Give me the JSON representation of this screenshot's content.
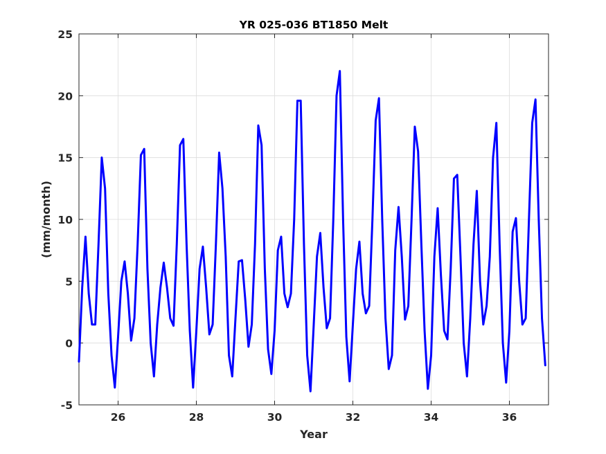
{
  "chart_data": {
    "type": "line",
    "title": "YR 025-036 BT1850 Melt",
    "xlabel": "Year",
    "ylabel": "(mm/month)",
    "xlim": [
      25,
      37
    ],
    "ylim": [
      -5,
      25
    ],
    "xticks": [
      26,
      28,
      30,
      32,
      34,
      36
    ],
    "xtick_labels": [
      "26",
      "28",
      "30",
      "32",
      "34",
      "36"
    ],
    "yticks": [
      -5,
      0,
      5,
      10,
      15,
      20,
      25
    ],
    "ytick_labels": [
      "-5",
      "0",
      "5",
      "10",
      "15",
      "20",
      "25"
    ],
    "grid": true,
    "series": [
      {
        "color": "#0000ff",
        "x": [
          25.0,
          25.083,
          25.167,
          25.25,
          25.333,
          25.417,
          25.5,
          25.583,
          25.667,
          25.75,
          25.833,
          25.917,
          26.0,
          26.083,
          26.167,
          26.25,
          26.333,
          26.417,
          26.5,
          26.583,
          26.667,
          26.75,
          26.833,
          26.917,
          27.0,
          27.083,
          27.167,
          27.25,
          27.333,
          27.417,
          27.5,
          27.583,
          27.667,
          27.75,
          27.833,
          27.917,
          28.0,
          28.083,
          28.167,
          28.25,
          28.333,
          28.417,
          28.5,
          28.583,
          28.667,
          28.75,
          28.833,
          28.917,
          29.0,
          29.083,
          29.167,
          29.25,
          29.333,
          29.417,
          29.5,
          29.583,
          29.667,
          29.75,
          29.833,
          29.917,
          30.0,
          30.083,
          30.167,
          30.25,
          30.333,
          30.417,
          30.5,
          30.583,
          30.667,
          30.75,
          30.833,
          30.917,
          31.0,
          31.083,
          31.167,
          31.25,
          31.333,
          31.417,
          31.5,
          31.583,
          31.667,
          31.75,
          31.833,
          31.917,
          32.0,
          32.083,
          32.167,
          32.25,
          32.333,
          32.417,
          32.5,
          32.583,
          32.667,
          32.75,
          32.833,
          32.917,
          33.0,
          33.083,
          33.167,
          33.25,
          33.333,
          33.417,
          33.5,
          33.583,
          33.667,
          33.75,
          33.833,
          33.917,
          34.0,
          34.083,
          34.167,
          34.25,
          34.333,
          34.417,
          34.5,
          34.583,
          34.667,
          34.75,
          34.833,
          34.917,
          35.0,
          35.083,
          35.167,
          35.25,
          35.333,
          35.417,
          35.5,
          35.583,
          35.667,
          35.75,
          35.833,
          35.917,
          36.0,
          36.083,
          36.167,
          36.25,
          36.333,
          36.417,
          36.5,
          36.583,
          36.667,
          36.75,
          36.833,
          36.917
        ],
        "values": [
          -1.5,
          4.5,
          8.6,
          4.0,
          1.5,
          1.5,
          8.0,
          15.0,
          12.5,
          4.0,
          -1.0,
          -3.6,
          0.5,
          5.0,
          6.6,
          4.0,
          0.2,
          2.0,
          8.0,
          15.2,
          15.7,
          6.0,
          0.0,
          -2.7,
          1.5,
          4.5,
          6.5,
          4.5,
          2.0,
          1.4,
          8.0,
          16.0,
          16.5,
          8.0,
          1.0,
          -3.6,
          1.0,
          6.0,
          7.8,
          4.5,
          0.7,
          1.5,
          8.0,
          15.4,
          12.5,
          7.0,
          -1.0,
          -2.7,
          2.0,
          6.6,
          6.7,
          3.5,
          -0.3,
          1.5,
          8.0,
          17.6,
          16.0,
          6.0,
          -0.5,
          -2.5,
          1.0,
          7.5,
          8.6,
          4.0,
          2.9,
          4.0,
          10.0,
          19.6,
          19.6,
          8.0,
          -1.0,
          -3.9,
          1.5,
          7.0,
          8.9,
          4.5,
          1.2,
          2.0,
          10.0,
          20.0,
          22.0,
          10.0,
          0.5,
          -3.1,
          1.5,
          6.0,
          8.2,
          4.0,
          2.4,
          3.0,
          10.0,
          18.0,
          19.8,
          10.0,
          2.0,
          -2.1,
          -1.0,
          7.5,
          11.0,
          7.0,
          1.9,
          3.0,
          10.0,
          17.5,
          15.5,
          8.0,
          1.0,
          -3.7,
          -1.0,
          7.0,
          10.9,
          5.5,
          1.0,
          0.3,
          6.0,
          13.3,
          13.6,
          7.0,
          0.0,
          -2.7,
          2.0,
          8.0,
          12.3,
          5.0,
          1.5,
          3.0,
          7.0,
          15.0,
          17.8,
          8.0,
          0.0,
          -3.2,
          1.0,
          9.0,
          10.1,
          5.0,
          1.5,
          2.0,
          10.0,
          17.8,
          19.7,
          10.0,
          2.0,
          -1.8
        ]
      }
    ]
  }
}
